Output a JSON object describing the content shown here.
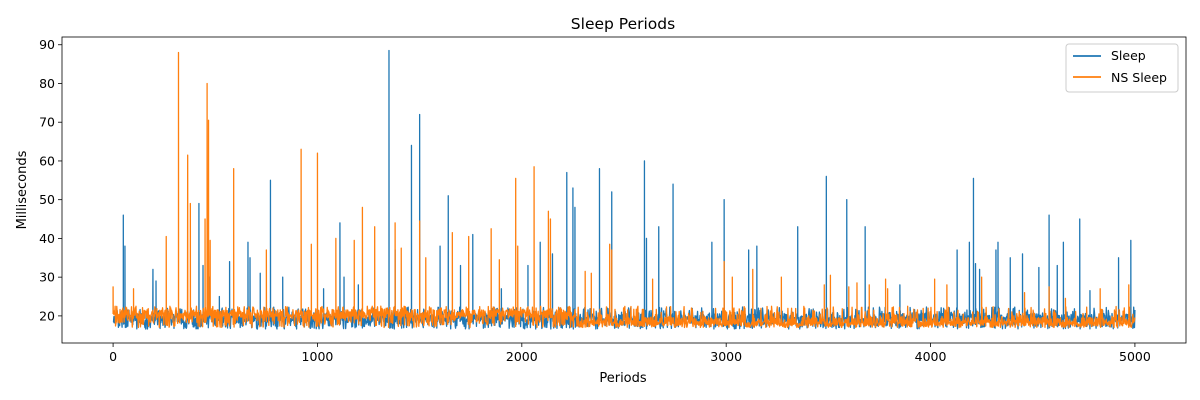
{
  "chart_data": {
    "type": "line",
    "title": "Sleep Periods",
    "xlabel": "Periods",
    "ylabel": "Milliseconds",
    "xlim": [
      -250,
      5250
    ],
    "ylim": [
      13,
      92
    ],
    "xticks": [
      0,
      1000,
      2000,
      3000,
      4000,
      5000
    ],
    "yticks": [
      20,
      30,
      40,
      50,
      60,
      70,
      80,
      90
    ],
    "grid": false,
    "legend": "top-right",
    "series": [
      {
        "name": "Sleep",
        "color": "#1f77b4",
        "x_range": [
          0,
          5000
        ],
        "baseline": 19.5,
        "noise_low": 16.6,
        "noise_high": 22.3,
        "spikes": [
          [
            50,
            46
          ],
          [
            58,
            38
          ],
          [
            195,
            32
          ],
          [
            210,
            29
          ],
          [
            420,
            49
          ],
          [
            440,
            33
          ],
          [
            470,
            30
          ],
          [
            520,
            25
          ],
          [
            570,
            34
          ],
          [
            660,
            39
          ],
          [
            670,
            35
          ],
          [
            720,
            31
          ],
          [
            770,
            55
          ],
          [
            830,
            30
          ],
          [
            1030,
            27
          ],
          [
            1110,
            44
          ],
          [
            1130,
            30
          ],
          [
            1200,
            28
          ],
          [
            1350,
            88.5
          ],
          [
            1380,
            37
          ],
          [
            1460,
            64
          ],
          [
            1500,
            72
          ],
          [
            1600,
            38
          ],
          [
            1640,
            51
          ],
          [
            1700,
            33
          ],
          [
            1760,
            41
          ],
          [
            1900,
            27
          ],
          [
            2030,
            33
          ],
          [
            2090,
            39
          ],
          [
            2150,
            36
          ],
          [
            2220,
            57
          ],
          [
            2250,
            53
          ],
          [
            2260,
            48
          ],
          [
            2380,
            58
          ],
          [
            2440,
            52
          ],
          [
            2600,
            60
          ],
          [
            2610,
            40
          ],
          [
            2670,
            43
          ],
          [
            2740,
            54
          ],
          [
            2930,
            39
          ],
          [
            2990,
            50
          ],
          [
            3110,
            37
          ],
          [
            3150,
            38
          ],
          [
            3350,
            43
          ],
          [
            3490,
            56
          ],
          [
            3590,
            50
          ],
          [
            3680,
            43
          ],
          [
            3850,
            28
          ],
          [
            4130,
            37
          ],
          [
            4190,
            39
          ],
          [
            4210,
            55.5
          ],
          [
            4220,
            33.5
          ],
          [
            4240,
            32
          ],
          [
            4320,
            37
          ],
          [
            4330,
            39
          ],
          [
            4390,
            35
          ],
          [
            4450,
            36
          ],
          [
            4530,
            32.5
          ],
          [
            4580,
            46
          ],
          [
            4620,
            33
          ],
          [
            4650,
            39
          ],
          [
            4730,
            45
          ],
          [
            4780,
            26.5
          ],
          [
            4920,
            35
          ],
          [
            4980,
            39.5
          ]
        ]
      },
      {
        "name": "NS Sleep",
        "color": "#ff7f0e",
        "x_range": [
          0,
          5000
        ],
        "baseline": 20.5,
        "baseline_after": 18.5,
        "baseline_switch_x": 2270,
        "noise_low": 17.0,
        "noise_high": 22.5,
        "spikes": [
          [
            0,
            27.5
          ],
          [
            100,
            27
          ],
          [
            260,
            40.5
          ],
          [
            320,
            88
          ],
          [
            365,
            61.5
          ],
          [
            378,
            49
          ],
          [
            450,
            45
          ],
          [
            460,
            80
          ],
          [
            467,
            70.5
          ],
          [
            475,
            39.5
          ],
          [
            590,
            58
          ],
          [
            750,
            37
          ],
          [
            920,
            63
          ],
          [
            970,
            38.5
          ],
          [
            1000,
            62
          ],
          [
            1090,
            40
          ],
          [
            1180,
            39.5
          ],
          [
            1220,
            48
          ],
          [
            1280,
            43
          ],
          [
            1380,
            44
          ],
          [
            1410,
            37.5
          ],
          [
            1500,
            44.5
          ],
          [
            1530,
            35
          ],
          [
            1660,
            41.5
          ],
          [
            1740,
            40.5
          ],
          [
            1850,
            42.5
          ],
          [
            1890,
            34.5
          ],
          [
            1970,
            55.5
          ],
          [
            1980,
            38
          ],
          [
            2060,
            58.5
          ],
          [
            2130,
            47
          ],
          [
            2140,
            45
          ],
          [
            2310,
            31.5
          ],
          [
            2340,
            31
          ],
          [
            2430,
            38.5
          ],
          [
            2440,
            37
          ],
          [
            2640,
            29.5
          ],
          [
            2990,
            34
          ],
          [
            3030,
            30
          ],
          [
            3130,
            32
          ],
          [
            3270,
            30
          ],
          [
            3480,
            28
          ],
          [
            3510,
            30.5
          ],
          [
            3600,
            27.5
          ],
          [
            3640,
            28.5
          ],
          [
            3700,
            28
          ],
          [
            3780,
            29.5
          ],
          [
            3790,
            27
          ],
          [
            4020,
            29.5
          ],
          [
            4080,
            28
          ],
          [
            4250,
            30
          ],
          [
            4460,
            26
          ],
          [
            4580,
            27.5
          ],
          [
            4660,
            24.5
          ],
          [
            4830,
            27
          ],
          [
            4970,
            28
          ]
        ]
      }
    ]
  }
}
